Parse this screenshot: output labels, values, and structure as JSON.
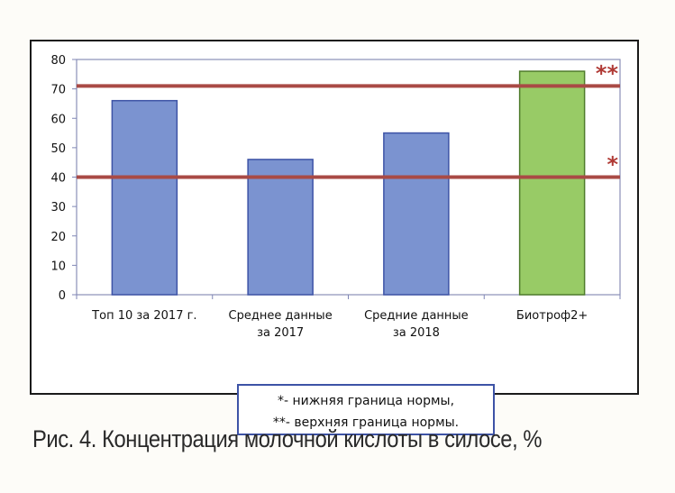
{
  "caption": "Рис. 4. Концентрация молочной кислоты в силосе, %",
  "legend": {
    "line1": "*- нижняя граница нормы,",
    "line2": "**- верхняя граница нормы."
  },
  "colors": {
    "bar_default": "#7b93d0",
    "bar_default_stroke": "#3d53a6",
    "bar_highlight": "#98cb66",
    "bar_highlight_stroke": "#4f7c2c",
    "norm_line": "#a94a45"
  },
  "chart_data": {
    "type": "bar",
    "categories": [
      [
        "Топ 10 за 2017 г."
      ],
      [
        "Среднее данные",
        "за 2017"
      ],
      [
        "Средние данные",
        "за 2018"
      ],
      [
        "Биотроф2+"
      ]
    ],
    "values": [
      66,
      46,
      55,
      76
    ],
    "highlight_index": 3,
    "ylim": [
      0,
      80
    ],
    "yticks": [
      0,
      10,
      20,
      30,
      40,
      50,
      60,
      70,
      80
    ],
    "grid": false,
    "reference_lines": [
      {
        "y": 40,
        "marker": "*"
      },
      {
        "y": 71,
        "marker": "**"
      }
    ]
  }
}
